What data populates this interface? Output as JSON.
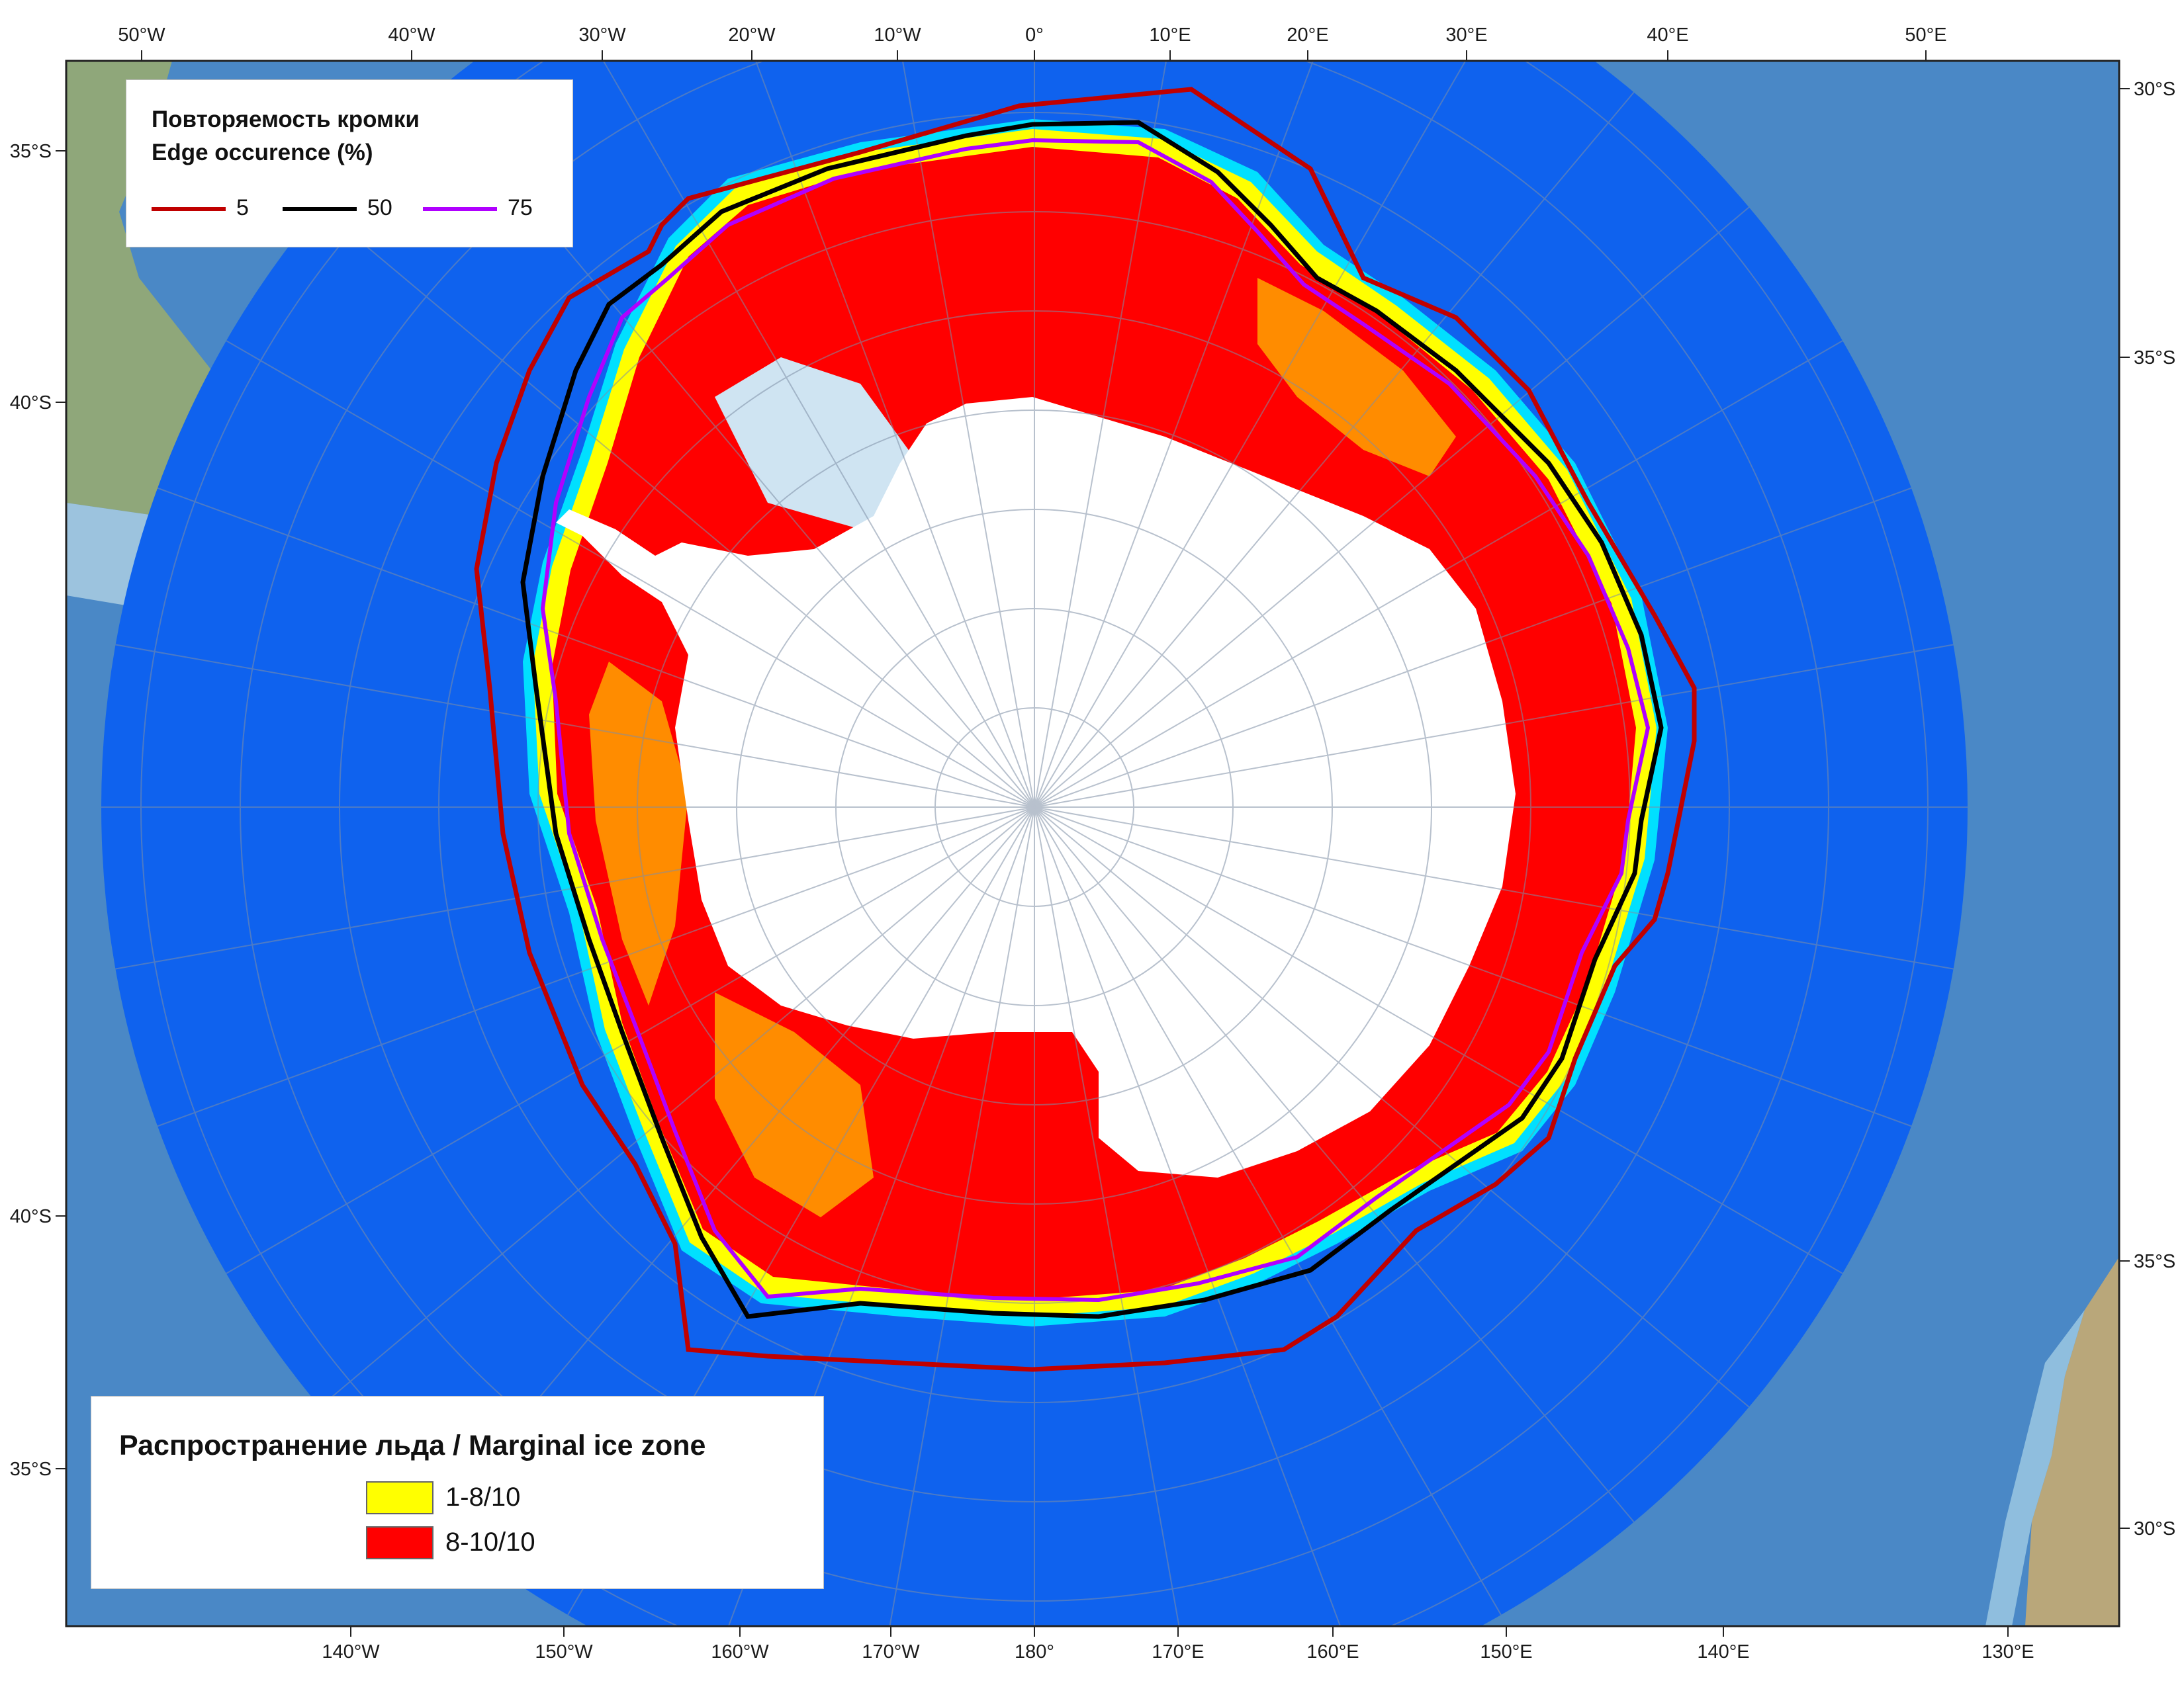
{
  "map": {
    "top_lon_labels": [
      "50°W",
      "40°W",
      "30°W",
      "20°W",
      "10°W",
      "0°",
      "10°E",
      "20°E",
      "30°E",
      "40°E",
      "50°E"
    ],
    "bottom_lon_labels": [
      "140°W",
      "150°W",
      "160°W",
      "170°W",
      "180°",
      "170°E",
      "160°E",
      "150°E",
      "140°E",
      "130°E"
    ],
    "left_lat_labels": [
      "35°S",
      "40°S",
      "40°S",
      "35°S"
    ],
    "right_lat_labels": [
      "30°S",
      "35°S",
      "35°S",
      "30°S"
    ],
    "colors": {
      "ocean_outer": "#4a88c6",
      "ocean_inner": "#0f62ee",
      "land": "#8fa77a",
      "ice_shelf": "#cfe4f2",
      "continent": "#ffffff",
      "ice_low": "#ffff00",
      "ice_high": "#ff0000",
      "ice_medium": "#ff8c00",
      "ice_edge_cyan": "#00e0ff",
      "edge_5": "#c00000",
      "edge_50": "#000000",
      "edge_75": "#b000ff"
    }
  },
  "edge_legend": {
    "title_ru": "Повторяемость кромки",
    "title_en": "Edge occurence (%)",
    "items": [
      {
        "value": "5",
        "color": "#c00000"
      },
      {
        "value": "50",
        "color": "#000000"
      },
      {
        "value": "75",
        "color": "#b000ff"
      }
    ]
  },
  "ice_legend": {
    "title": "Распространение льда / Marginal ice zone",
    "items": [
      {
        "label": "1-8/10",
        "color": "#ffff00"
      },
      {
        "label": "8-10/10",
        "color": "#ff0000"
      }
    ]
  }
}
